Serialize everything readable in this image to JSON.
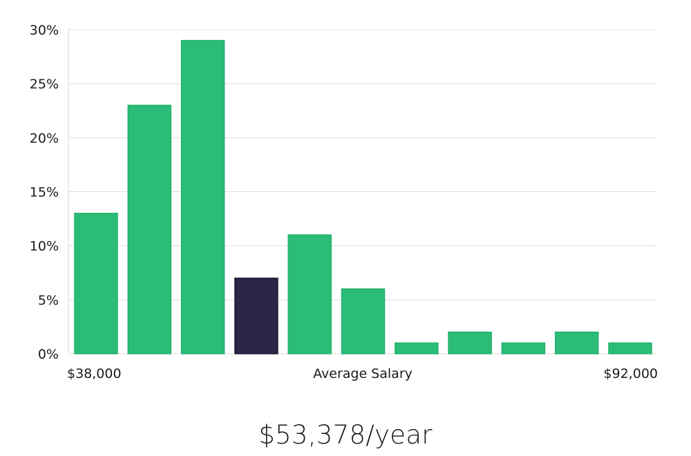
{
  "chart_data": {
    "type": "bar",
    "series": [
      {
        "values": [
          13,
          23,
          29,
          7,
          11,
          6,
          1,
          2,
          1,
          2,
          1
        ],
        "colors": [
          "#2bbd77",
          "#2bbd77",
          "#2bbd77",
          "#2a2645",
          "#2bbd77",
          "#2bbd77",
          "#2bbd77",
          "#2bbd77",
          "#2bbd77",
          "#2bbd77",
          "#2bbd77"
        ]
      }
    ],
    "highlight_index": 3,
    "ylim": [
      0,
      30
    ],
    "yticks": [
      {
        "value": 0,
        "label": "0%"
      },
      {
        "value": 5,
        "label": "5%"
      },
      {
        "value": 10,
        "label": "10%"
      },
      {
        "value": 15,
        "label": "15%"
      },
      {
        "value": 20,
        "label": "20%"
      },
      {
        "value": 25,
        "label": "25%"
      },
      {
        "value": 30,
        "label": "30%"
      }
    ],
    "x_min_label": "$38,000",
    "xlabel": "Average Salary",
    "x_max_label": "$92,000",
    "grid": true,
    "bar_color": "#2bbd77",
    "highlight_color": "#2a2645"
  },
  "salary": {
    "text": "$53,378/year"
  }
}
